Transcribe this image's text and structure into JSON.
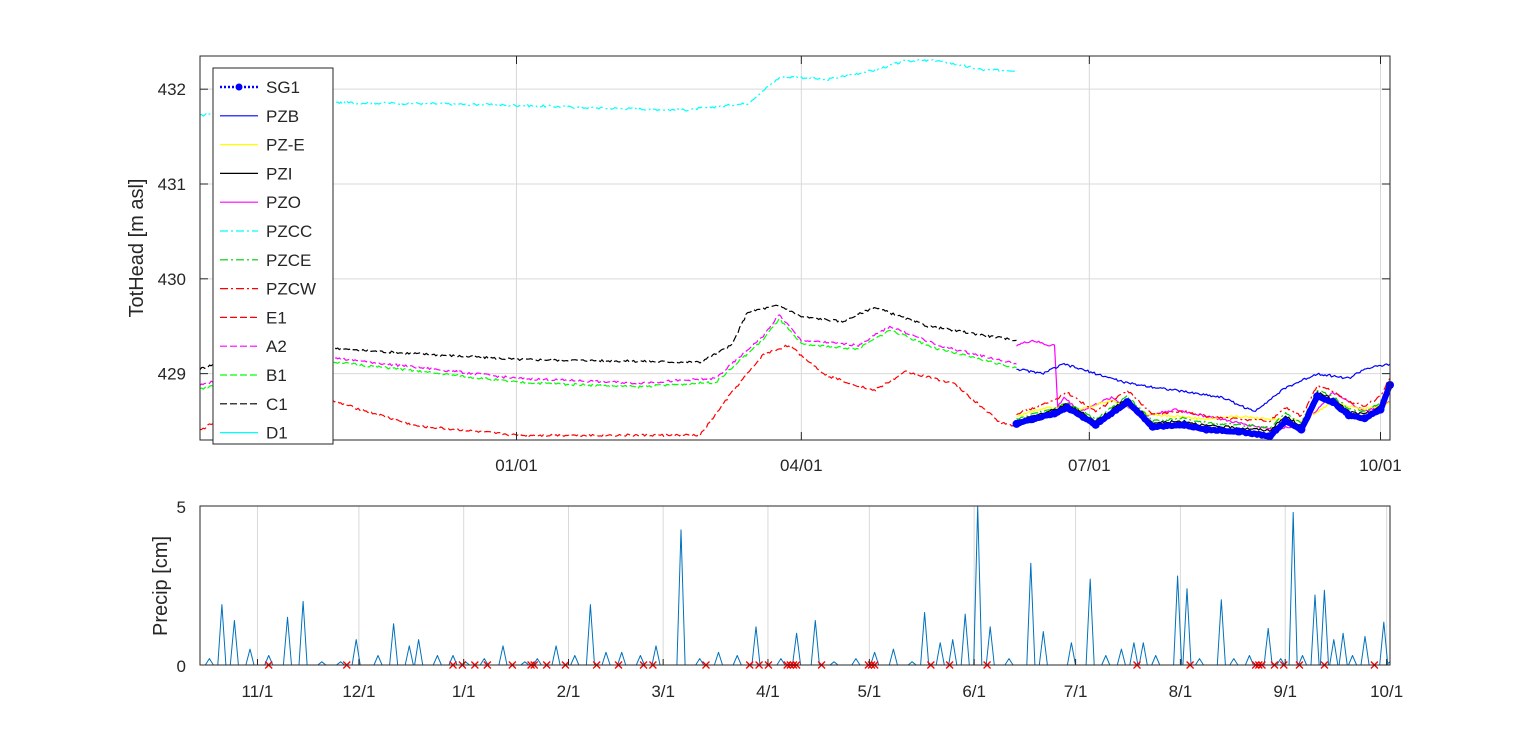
{
  "colors": {
    "SG1": "#0000ff",
    "PZB": "#0000ff",
    "PZ-E": "#ffff00",
    "PZI": "#000000",
    "PZO": "#ff00ff",
    "PZCC": "#00ffff",
    "PZCE": "#00cc00",
    "PZCW": "#ff0000",
    "E1": "#ff0000",
    "A2": "#ff00ff",
    "B1": "#00ff00",
    "C1": "#000000",
    "D1": "#00ffff",
    "precip": "#0072bd",
    "marker": "#ff0000",
    "grid": "#d9d9d9",
    "axis": "#262626"
  },
  "chart_data": [
    {
      "type": "line",
      "ylabel": "TotHead [m asl]",
      "xlabel": "",
      "x_units": "days since 10/01",
      "xlim": [
        -8,
        368
      ],
      "ylim": [
        428.3,
        432.35
      ],
      "yticks": [
        429,
        430,
        431,
        432
      ],
      "ytick_labels": [
        "429",
        "430",
        "431",
        "432"
      ],
      "xticks": [
        92,
        182,
        273,
        365
      ],
      "xtick_labels": [
        "01/01",
        "04/01",
        "07/01",
        "10/01"
      ],
      "grid": true,
      "legend_position": "top-left",
      "legend": [
        "SG1",
        "PZB",
        "PZ-E",
        "PZI",
        "PZO",
        "PZCC",
        "PZCE",
        "PZCW",
        "E1",
        "A2",
        "B1",
        "C1",
        "D1"
      ],
      "series": [
        {
          "name": "PZCC",
          "style": "dashdot",
          "x": [
            -8,
            10,
            30,
            60,
            92,
            120,
            145,
            165,
            175,
            180,
            190,
            205,
            215,
            225,
            240,
            250
          ],
          "y": [
            431.72,
            431.85,
            431.86,
            431.85,
            431.83,
            431.8,
            431.78,
            431.85,
            432.12,
            432.13,
            432.1,
            432.2,
            432.3,
            432.3,
            432.2,
            432.2
          ]
        },
        {
          "name": "C1",
          "style": "dashed",
          "x": [
            -8,
            10,
            20,
            40,
            92,
            150,
            160,
            165,
            175,
            182,
            195,
            205,
            222,
            250
          ],
          "y": [
            429.05,
            429.25,
            429.33,
            429.25,
            429.15,
            429.12,
            429.3,
            429.65,
            429.72,
            429.6,
            429.55,
            429.7,
            429.5,
            429.35
          ]
        },
        {
          "name": "A2",
          "style": "dashed",
          "x": [
            -8,
            10,
            30,
            92,
            130,
            155,
            170,
            175,
            182,
            200,
            210,
            225,
            250
          ],
          "y": [
            428.88,
            429.03,
            429.18,
            428.95,
            428.9,
            428.95,
            429.4,
            429.62,
            429.35,
            429.3,
            429.5,
            429.3,
            429.1
          ]
        },
        {
          "name": "B1",
          "style": "dashed",
          "x": [
            -8,
            10,
            30,
            92,
            130,
            155,
            170,
            175,
            182,
            200,
            210,
            225,
            250
          ],
          "y": [
            428.84,
            428.99,
            429.14,
            428.91,
            428.86,
            428.91,
            429.36,
            429.58,
            429.31,
            429.26,
            429.46,
            429.26,
            429.06
          ]
        },
        {
          "name": "E1",
          "style": "dashed",
          "x": [
            -8,
            5,
            15,
            30,
            40,
            60,
            92,
            150,
            160,
            170,
            178,
            190,
            205,
            215,
            230,
            245,
            250
          ],
          "y": [
            428.4,
            428.65,
            428.55,
            428.75,
            428.65,
            428.45,
            428.35,
            428.35,
            428.8,
            429.2,
            429.3,
            428.98,
            428.82,
            429.02,
            428.9,
            428.48,
            428.45
          ]
        },
        {
          "name": "PZO",
          "style": "solid",
          "x": [
            250,
            255,
            260,
            262,
            263,
            265,
            270,
            280,
            290,
            300,
            310,
            320,
            330,
            340,
            350,
            360,
            368
          ],
          "y": [
            429.3,
            429.35,
            429.3,
            429.3,
            428.65,
            428.75,
            428.6,
            428.75,
            428.55,
            428.62,
            428.55,
            428.48,
            428.42,
            428.45,
            428.8,
            428.6,
            428.7
          ]
        },
        {
          "name": "PZB",
          "style": "solid",
          "x": [
            250,
            258,
            265,
            275,
            285,
            295,
            305,
            315,
            325,
            335,
            345,
            355,
            360,
            368
          ],
          "y": [
            429.05,
            429.0,
            429.1,
            429.0,
            428.9,
            428.85,
            428.8,
            428.75,
            428.6,
            428.85,
            429.0,
            428.95,
            429.05,
            429.1
          ]
        },
        {
          "name": "PZ-E",
          "style": "solid",
          "x": [
            250,
            260,
            270,
            280,
            290,
            300,
            310,
            320,
            330,
            340,
            350,
            360,
            368
          ],
          "y": [
            428.55,
            428.65,
            428.62,
            428.72,
            428.58,
            428.55,
            428.52,
            428.55,
            428.52,
            428.5,
            428.7,
            428.62,
            428.7
          ]
        },
        {
          "name": "PZCE",
          "style": "dashdot",
          "x": [
            250,
            255,
            262,
            266,
            275,
            285,
            293,
            303,
            310,
            320,
            330,
            335,
            340,
            345,
            350,
            355,
            360,
            365,
            368
          ],
          "y": [
            428.52,
            428.57,
            428.64,
            428.7,
            428.52,
            428.76,
            428.5,
            428.53,
            428.48,
            428.46,
            428.43,
            428.58,
            428.48,
            428.82,
            428.76,
            428.63,
            428.6,
            428.7,
            428.92
          ]
        },
        {
          "name": "PZCW",
          "style": "dashdot",
          "x": [
            250,
            255,
            262,
            266,
            275,
            285,
            293,
            303,
            310,
            320,
            330,
            335,
            340,
            345,
            350,
            355,
            360,
            365,
            368
          ],
          "y": [
            428.58,
            428.63,
            428.72,
            428.8,
            428.6,
            428.82,
            428.57,
            428.6,
            428.55,
            428.52,
            428.5,
            428.64,
            428.55,
            428.87,
            428.82,
            428.7,
            428.66,
            428.76,
            428.96
          ]
        },
        {
          "name": "PZI",
          "style": "solid",
          "x": [
            250,
            255,
            262,
            266,
            275,
            285,
            293,
            303,
            310,
            320,
            330,
            335,
            340,
            345,
            350,
            355,
            360,
            365,
            368
          ],
          "y": [
            428.5,
            428.55,
            428.62,
            428.68,
            428.5,
            428.74,
            428.48,
            428.5,
            428.45,
            428.43,
            428.4,
            428.55,
            428.45,
            428.8,
            428.73,
            428.6,
            428.57,
            428.66,
            428.9
          ]
        },
        {
          "name": "SG1",
          "style": "dotted-marker",
          "x": [
            250,
            255,
            262,
            266,
            275,
            285,
            293,
            303,
            310,
            320,
            330,
            335,
            340,
            345,
            350,
            355,
            360,
            365,
            368
          ],
          "y": [
            428.47,
            428.52,
            428.58,
            428.64,
            428.46,
            428.7,
            428.44,
            428.46,
            428.41,
            428.39,
            428.34,
            428.5,
            428.41,
            428.76,
            428.7,
            428.56,
            428.53,
            428.62,
            428.88
          ]
        }
      ]
    },
    {
      "type": "line",
      "ylabel": "Precip [cm]",
      "xlabel": "",
      "x_units": "days since 10/15",
      "xlim": [
        0,
        352
      ],
      "ylim": [
        0,
        5
      ],
      "yticks": [
        0,
        5
      ],
      "ytick_labels": [
        "0",
        "5"
      ],
      "xticks": [
        17,
        47,
        78,
        109,
        137,
        168,
        198,
        229,
        259,
        290,
        321,
        351
      ],
      "xtick_labels": [
        "11/1",
        "12/1",
        "1/1",
        "2/1",
        "3/1",
        "4/1",
        "5/1",
        "6/1",
        "7/1",
        "8/1",
        "9/1",
        "10/1"
      ],
      "grid": true,
      "series": [
        {
          "name": "Precip",
          "style": "solid",
          "spikes": [
            [
              3,
              0.2
            ],
            [
              7,
              1.9
            ],
            [
              11,
              1.4
            ],
            [
              16,
              0.5
            ],
            [
              22,
              0.3
            ],
            [
              28,
              1.5
            ],
            [
              33,
              2.0
            ],
            [
              39,
              0.1
            ],
            [
              45,
              0.1
            ],
            [
              50,
              0.8
            ],
            [
              57,
              0.3
            ],
            [
              62,
              1.3
            ],
            [
              67,
              0.6
            ],
            [
              70,
              0.8
            ],
            [
              76,
              0.3
            ],
            [
              81,
              0.3
            ],
            [
              85,
              0.1
            ],
            [
              91,
              0.2
            ],
            [
              97,
              0.6
            ],
            [
              104,
              0.1
            ],
            [
              108,
              0.2
            ],
            [
              114,
              0.6
            ],
            [
              120,
              0.3
            ],
            [
              125,
              1.9
            ],
            [
              130,
              0.4
            ],
            [
              135,
              0.4
            ],
            [
              141,
              0.3
            ],
            [
              146,
              0.6
            ],
            [
              154,
              4.25
            ],
            [
              160,
              0.2
            ],
            [
              166,
              0.4
            ],
            [
              172,
              0.3
            ],
            [
              178,
              1.2
            ],
            [
              186,
              0.2
            ],
            [
              191,
              1.0
            ],
            [
              197,
              1.4
            ],
            [
              203,
              0.1
            ],
            [
              210,
              0.2
            ],
            [
              216,
              0.4
            ],
            [
              222,
              0.5
            ],
            [
              228,
              0.1
            ],
            [
              232,
              1.65
            ],
            [
              237,
              0.7
            ],
            [
              241,
              0.8
            ],
            [
              245,
              1.6
            ],
            [
              249,
              5.0
            ],
            [
              253,
              1.2
            ],
            [
              259,
              0.2
            ],
            [
              266,
              3.2
            ],
            [
              270,
              1.05
            ],
            [
              279,
              0.7
            ],
            [
              285,
              2.7
            ],
            [
              290,
              0.3
            ],
            [
              295,
              0.5
            ],
            [
              299,
              0.7
            ],
            [
              302,
              0.7
            ],
            [
              306,
              0.3
            ],
            [
              313,
              2.8
            ],
            [
              316,
              2.4
            ],
            [
              320,
              0.2
            ],
            [
              327,
              2.05
            ],
            [
              331,
              0.2
            ],
            [
              336,
              0.3
            ],
            [
              342,
              1.15
            ],
            [
              346,
              0.2
            ],
            [
              350,
              4.8
            ],
            [
              353,
              0.3
            ],
            [
              357,
              2.2
            ],
            [
              360,
              2.35
            ],
            [
              363,
              0.8
            ],
            [
              366,
              1.0
            ],
            [
              369,
              0.3
            ],
            [
              373,
              0.9
            ],
            [
              379,
              1.35
            ],
            [
              381,
              0.1
            ]
          ],
          "zero_markers": [
            22,
            47,
            81,
            84,
            88,
            92,
            100,
            106,
            107,
            111,
            117,
            127,
            134,
            142,
            145,
            162,
            176,
            179,
            182,
            188,
            189,
            190,
            191,
            199,
            214,
            215,
            216,
            234,
            240,
            252,
            300,
            317,
            338,
            339,
            340,
            344,
            347,
            352,
            360,
            376
          ]
        }
      ]
    }
  ]
}
